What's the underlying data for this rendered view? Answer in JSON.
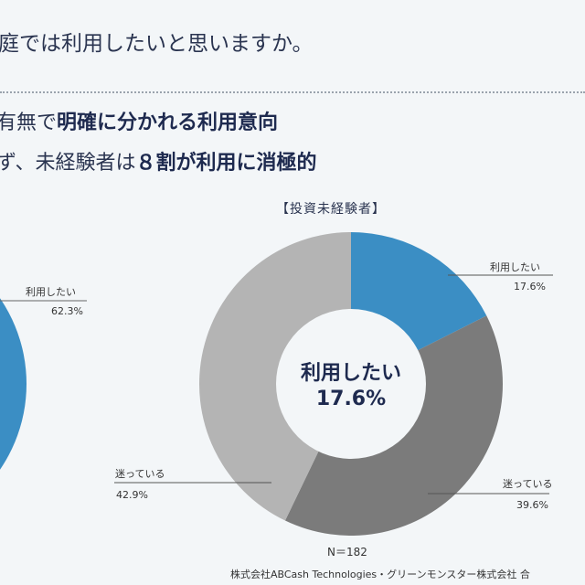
{
  "header": {
    "question": "庭では利用したいと思いますか。",
    "headline1_plain": "有無で",
    "headline1_bold": "明確に分かれる利用意向",
    "headline2_plain": "ず、未経験者は",
    "headline2_bold": "８割が利用に消極的"
  },
  "left_chart": {
    "label": "利用したい",
    "value_label": "62.3%"
  },
  "chart_data": {
    "type": "pie",
    "title": "【投資未経験者】",
    "center_label": "利用したい",
    "center_value": "17.6%",
    "slices": [
      {
        "label": "利用したい",
        "value": 17.6,
        "value_label": "17.6%",
        "color": "#3b8ec4"
      },
      {
        "label": "迷っている",
        "value": 39.6,
        "value_label": "39.6%",
        "color": "#7b7b7b"
      },
      {
        "label": "迷っている",
        "value": 42.9,
        "value_label": "42.9%",
        "color": "#b4b4b4"
      }
    ],
    "n_label": "N＝182"
  },
  "footer": {
    "source": "株式会社ABCash Technologies・グリーンモンスター株式会社 合"
  }
}
